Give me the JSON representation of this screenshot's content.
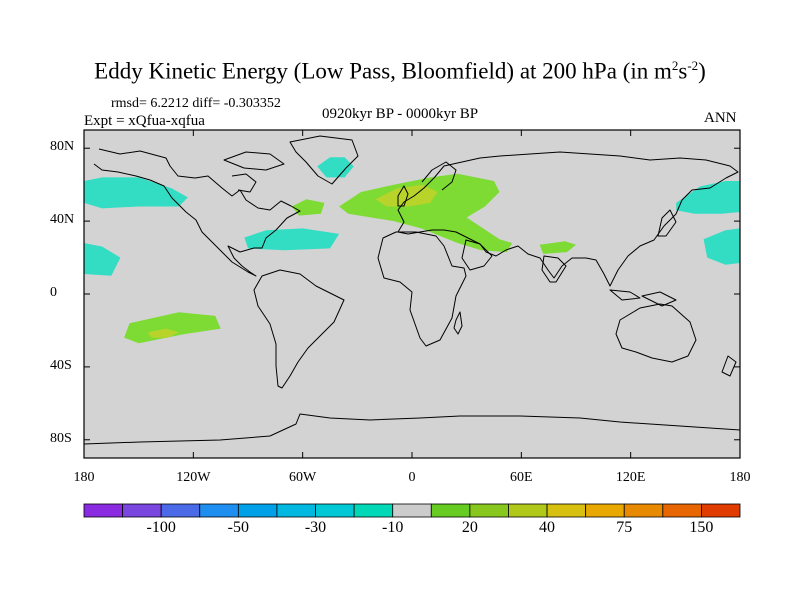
{
  "title": {
    "main": "Eddy Kinetic Energy (Low Pass, Bloomfield) at 200 hPa (in m",
    "sup1": "2",
    "mid": "s",
    "sup2": "-2",
    "end": ")"
  },
  "stats_line": "rmsd= 6.2212 diff= -0.303352",
  "expt_line": "Expt = xQfua-xqfua",
  "period": "0920kyr BP - 0000kyr BP",
  "season": "ANN",
  "map": {
    "projection": "cylindrical equidistant",
    "lon_range": [
      -180,
      180
    ],
    "lat_range": [
      -90,
      90
    ],
    "y_ticks": [
      {
        "lat": 80,
        "label": "80N"
      },
      {
        "lat": 40,
        "label": "40N"
      },
      {
        "lat": 0,
        "label": "0"
      },
      {
        "lat": -40,
        "label": "40S"
      },
      {
        "lat": -80,
        "label": "80S"
      }
    ],
    "x_ticks": [
      {
        "lon": -180,
        "label": "180"
      },
      {
        "lon": -120,
        "label": "120W"
      },
      {
        "lon": -60,
        "label": "60W"
      },
      {
        "lon": 0,
        "label": "0"
      },
      {
        "lon": 60,
        "label": "60E"
      },
      {
        "lon": 120,
        "label": "120E"
      },
      {
        "lon": 180,
        "label": "180"
      }
    ],
    "background_color": "#d3d3d3",
    "anomaly_regions": [
      {
        "name": "north-pacific-west",
        "sign": "negative",
        "lon_lat": [
          [
            -180,
            62
          ],
          [
            -170,
            64
          ],
          [
            -150,
            64
          ],
          [
            -132,
            58
          ],
          [
            -123,
            53
          ],
          [
            -128,
            48
          ],
          [
            -150,
            48
          ],
          [
            -170,
            47
          ],
          [
            -180,
            50
          ]
        ]
      },
      {
        "name": "north-pacific-east",
        "sign": "negative",
        "lon_lat": [
          [
            145,
            50
          ],
          [
            158,
            59
          ],
          [
            172,
            62
          ],
          [
            180,
            62
          ],
          [
            180,
            45
          ],
          [
            170,
            44
          ],
          [
            155,
            44
          ],
          [
            145,
            46
          ]
        ]
      },
      {
        "name": "subtropical-pacific-west",
        "sign": "negative",
        "lon_lat": [
          [
            -180,
            28
          ],
          [
            -170,
            26
          ],
          [
            -160,
            20
          ],
          [
            -165,
            10
          ],
          [
            -180,
            11
          ]
        ]
      },
      {
        "name": "subtropical-pacific-east",
        "sign": "negative",
        "lon_lat": [
          [
            160,
            30
          ],
          [
            172,
            35
          ],
          [
            180,
            36
          ],
          [
            180,
            17
          ],
          [
            172,
            16
          ],
          [
            162,
            20
          ]
        ]
      },
      {
        "name": "gulf-of-mexico-atlantic",
        "sign": "negative",
        "lon_lat": [
          [
            -92,
            31
          ],
          [
            -80,
            35
          ],
          [
            -60,
            36
          ],
          [
            -40,
            33
          ],
          [
            -45,
            25
          ],
          [
            -70,
            24
          ],
          [
            -90,
            25
          ]
        ]
      },
      {
        "name": "greenland",
        "sign": "negative",
        "lon_lat": [
          [
            -52,
            70
          ],
          [
            -45,
            75
          ],
          [
            -37,
            75
          ],
          [
            -32,
            70
          ],
          [
            -37,
            64
          ],
          [
            -47,
            64
          ]
        ]
      },
      {
        "name": "europe-north-atlantic",
        "sign": "positive",
        "lon_lat": [
          [
            -40,
            48
          ],
          [
            -28,
            56
          ],
          [
            -10,
            60
          ],
          [
            10,
            64
          ],
          [
            25,
            66
          ],
          [
            45,
            62
          ],
          [
            48,
            56
          ],
          [
            40,
            48
          ],
          [
            30,
            42
          ],
          [
            48,
            30
          ],
          [
            55,
            28
          ],
          [
            52,
            23
          ],
          [
            38,
            24
          ],
          [
            25,
            28
          ],
          [
            5,
            36
          ],
          [
            -10,
            40
          ],
          [
            -35,
            44
          ]
        ]
      },
      {
        "name": "newfoundland-patch",
        "sign": "positive",
        "lon_lat": [
          [
            -66,
            48
          ],
          [
            -58,
            52
          ],
          [
            -48,
            50
          ],
          [
            -50,
            44
          ],
          [
            -62,
            43
          ]
        ]
      },
      {
        "name": "india-patch",
        "sign": "positive",
        "lon_lat": [
          [
            70,
            27
          ],
          [
            84,
            29
          ],
          [
            90,
            27
          ],
          [
            85,
            23
          ],
          [
            72,
            22
          ]
        ]
      },
      {
        "name": "south-pacific",
        "sign": "positive",
        "lon_lat": [
          [
            -155,
            -16
          ],
          [
            -128,
            -10
          ],
          [
            -108,
            -12
          ],
          [
            -105,
            -19
          ],
          [
            -125,
            -22
          ],
          [
            -150,
            -27
          ],
          [
            -158,
            -24
          ]
        ]
      },
      {
        "name": "europe-core",
        "sign": "positive-strong",
        "lon_lat": [
          [
            -20,
            52
          ],
          [
            -8,
            58
          ],
          [
            6,
            60
          ],
          [
            14,
            56
          ],
          [
            10,
            50
          ],
          [
            -2,
            48
          ],
          [
            -14,
            48
          ]
        ]
      },
      {
        "name": "south-pacific-core",
        "sign": "positive-strong",
        "lon_lat": [
          [
            -145,
            -21
          ],
          [
            -135,
            -19
          ],
          [
            -128,
            -21
          ],
          [
            -134,
            -24
          ],
          [
            -143,
            -24
          ]
        ]
      }
    ]
  },
  "colorbar": {
    "colors": [
      "#8a2be2",
      "#7a46e0",
      "#4a6ae8",
      "#1e8ff0",
      "#00a0e8",
      "#00b8e0",
      "#00c8d4",
      "#00d8b8",
      "#cccccc",
      "#66cc22",
      "#88c81e",
      "#b0c81a",
      "#d8c010",
      "#e8a800",
      "#e88a00",
      "#e86600",
      "#e03c00"
    ],
    "labels": [
      "-100",
      "-50",
      "-30",
      "-10",
      "20",
      "40",
      "75",
      "150"
    ]
  },
  "colors": {
    "negative": "#33ddc4",
    "negative_inner": "#00c8d8",
    "positive": "#7ddb33",
    "positive_strong": "#b8d42a",
    "coast": "#000000"
  }
}
